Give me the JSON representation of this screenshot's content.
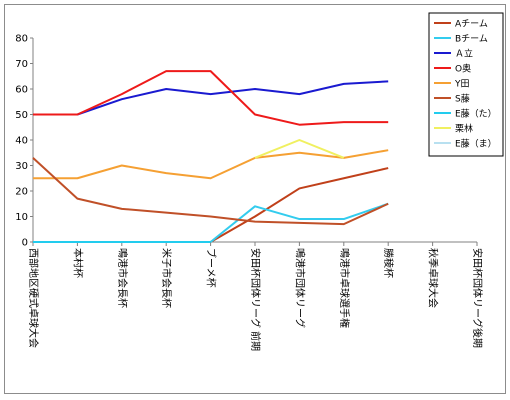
{
  "chart_data": {
    "type": "line",
    "title": "",
    "xlabel": "",
    "ylabel": "",
    "ylim": [
      0,
      80
    ],
    "yticks": [
      0,
      10,
      20,
      30,
      40,
      50,
      60,
      70,
      80
    ],
    "grid": false,
    "legend_position": "right",
    "categories": [
      "西部地区硬式卓球大会",
      "本村杯",
      "鳴港市会長杯",
      "米子市会長杯",
      "ブーメ杯",
      "安田杯団体リーグ 前期",
      "鳴港市団体リーグ",
      "鳴港市卓球選手権",
      "勝稜杯",
      "秋季卓球大会",
      "安田杯団体リーグ後期"
    ],
    "series": [
      {
        "name": "Aチーム",
        "color": "#c0401a",
        "values": [
          null,
          null,
          null,
          null,
          0,
          10,
          21,
          25,
          29,
          null,
          null
        ]
      },
      {
        "name": "Bチーム",
        "color": "#33ccee",
        "values": [
          null,
          null,
          null,
          null,
          0,
          14,
          9,
          9,
          15,
          null,
          null
        ]
      },
      {
        "name": "Ａ立",
        "color": "#1a1ad0",
        "values": [
          50,
          50,
          56,
          60,
          58,
          60,
          58,
          62,
          63,
          null,
          null
        ]
      },
      {
        "name": "O奥",
        "color": "#ee1a1a",
        "values": [
          50,
          50,
          58,
          67,
          67,
          50,
          46,
          47,
          47,
          null,
          null
        ]
      },
      {
        "name": "Y田",
        "color": "#f5a033",
        "values": [
          25,
          25,
          30,
          27,
          25,
          33,
          35,
          33,
          36,
          null,
          null
        ]
      },
      {
        "name": "S藤",
        "color": "#c05028",
        "values": [
          33,
          17,
          13,
          11.5,
          10,
          8,
          7.5,
          7,
          15,
          null,
          null
        ]
      },
      {
        "name": "E藤（た）",
        "color": "#22ccee",
        "values": [
          0,
          0,
          0,
          0,
          0,
          null,
          null,
          null,
          null,
          null,
          null
        ]
      },
      {
        "name": "栗林",
        "color": "#f0f060",
        "values": [
          null,
          null,
          null,
          null,
          null,
          33,
          40,
          33,
          null,
          null,
          null
        ]
      },
      {
        "name": "E藤（ま）",
        "color": "#b8e0f0",
        "values": [
          null,
          null,
          null,
          null,
          null,
          null,
          null,
          null,
          null,
          null,
          null
        ]
      }
    ]
  }
}
